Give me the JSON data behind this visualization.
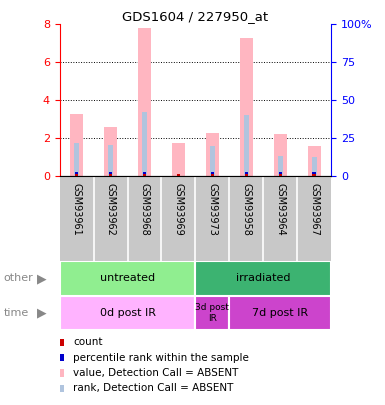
{
  "title": "GDS1604 / 227950_at",
  "samples": [
    "GSM93961",
    "GSM93962",
    "GSM93968",
    "GSM93969",
    "GSM93973",
    "GSM93958",
    "GSM93964",
    "GSM93967"
  ],
  "pink_bar_heights": [
    3.3,
    2.6,
    7.8,
    1.75,
    2.25,
    7.3,
    2.2,
    1.6
  ],
  "blue_bar_heights": [
    1.75,
    1.65,
    3.4,
    0.0,
    1.6,
    3.2,
    1.05,
    1.0
  ],
  "ylim_left": [
    0,
    8
  ],
  "ylim_right": [
    0,
    100
  ],
  "yticks_left": [
    0,
    2,
    4,
    6,
    8
  ],
  "yticks_right": [
    0,
    25,
    50,
    75,
    100
  ],
  "ytick_labels_right": [
    "0",
    "25",
    "50",
    "75",
    "100%"
  ],
  "grid_lines": [
    2,
    4,
    6
  ],
  "pink_color": "#FFB6C1",
  "light_blue_color": "#B0C4DE",
  "red_color": "#CC0000",
  "blue_color": "#0000CC",
  "gray_bg": "#C8C8C8",
  "group_other": [
    {
      "label": "untreated",
      "start": 0,
      "end": 4,
      "color": "#90EE90"
    },
    {
      "label": "irradiated",
      "start": 4,
      "end": 8,
      "color": "#3CB371"
    }
  ],
  "group_time": [
    {
      "label": "0d post IR",
      "start": 0,
      "end": 4,
      "color": "#FFB3FF"
    },
    {
      "label": "3d post\nIR",
      "start": 4,
      "end": 5,
      "color": "#CC44CC"
    },
    {
      "label": "7d post IR",
      "start": 5,
      "end": 8,
      "color": "#CC44CC"
    }
  ],
  "legend_items": [
    {
      "label": "count",
      "color": "#CC0000"
    },
    {
      "label": "percentile rank within the sample",
      "color": "#0000CC"
    },
    {
      "label": "value, Detection Call = ABSENT",
      "color": "#FFB6C1"
    },
    {
      "label": "rank, Detection Call = ABSENT",
      "color": "#B0C4DE"
    }
  ]
}
